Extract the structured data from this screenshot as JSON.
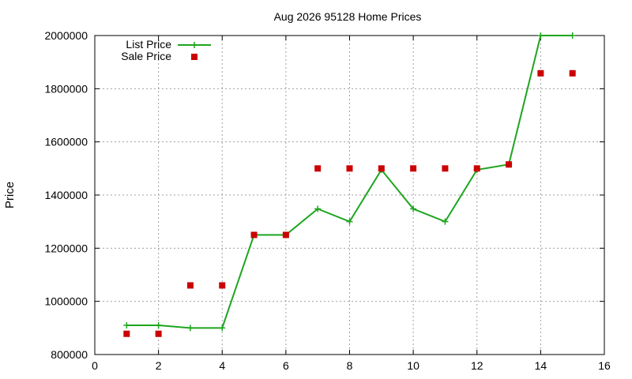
{
  "chart_data": {
    "type": "line",
    "title": "Aug 2026 95128 Home Prices",
    "xlabel": "",
    "ylabel": "Price",
    "xlim": [
      0,
      16
    ],
    "ylim": [
      800000,
      2000000
    ],
    "xticks": [
      0,
      2,
      4,
      6,
      8,
      10,
      12,
      14,
      16
    ],
    "yticks": [
      800000,
      1000000,
      1200000,
      1400000,
      1600000,
      1800000,
      2000000
    ],
    "grid": true,
    "legend_position": "top-left",
    "series": [
      {
        "name": "List Price",
        "style": "line-with-plus-markers",
        "color": "#1ea51e",
        "points": [
          [
            1,
            910000
          ],
          [
            2,
            910000
          ],
          [
            3,
            900000
          ],
          [
            4,
            900000
          ],
          [
            5,
            1250000
          ],
          [
            6,
            1250000
          ],
          [
            7,
            1348000
          ],
          [
            8,
            1300000
          ],
          [
            9,
            1495000
          ],
          [
            10,
            1348000
          ],
          [
            11,
            1300000
          ],
          [
            12,
            1495000
          ],
          [
            13,
            1515000
          ],
          [
            14,
            2000000
          ],
          [
            15,
            2000000
          ]
        ]
      },
      {
        "name": "Sale Price",
        "style": "square-markers",
        "color": "#cc0000",
        "points": [
          [
            1,
            878000
          ],
          [
            2,
            878000
          ],
          [
            3,
            1060000
          ],
          [
            4,
            1060000
          ],
          [
            5,
            1250000
          ],
          [
            6,
            1250000
          ],
          [
            7,
            1500000
          ],
          [
            8,
            1500000
          ],
          [
            9,
            1500000
          ],
          [
            10,
            1500000
          ],
          [
            11,
            1500000
          ],
          [
            12,
            1500000
          ],
          [
            13,
            1515000
          ],
          [
            14,
            1858000
          ],
          [
            15,
            1858000
          ]
        ]
      }
    ]
  }
}
